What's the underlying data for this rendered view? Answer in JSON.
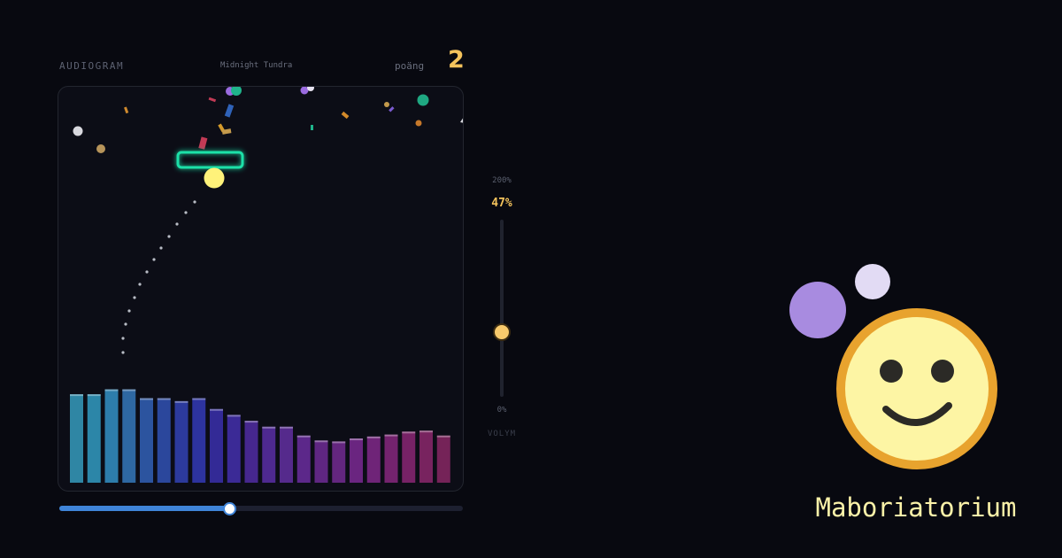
{
  "header": {
    "app_title": "AUDIOGRAM",
    "track_title": "Midnight Tundra",
    "score_label": "poäng",
    "score_value": "2"
  },
  "game": {
    "spectrum_levels": [
      0.45,
      0.45,
      0.475,
      0.475,
      0.43,
      0.43,
      0.415,
      0.43,
      0.375,
      0.345,
      0.315,
      0.285,
      0.285,
      0.24,
      0.215,
      0.21,
      0.225,
      0.235,
      0.245,
      0.26,
      0.265,
      0.24
    ],
    "spectrum_colors": [
      "#2f86a4",
      "#2c86a8",
      "#2d7dab",
      "#2e68a2",
      "#2c549f",
      "#2b479c",
      "#2c3a9c",
      "#2d339f",
      "#332a96",
      "#3b2a96",
      "#46278e",
      "#4e2990",
      "#552a8c",
      "#5c288a",
      "#5f2682",
      "#63267f",
      "#6a2580",
      "#6f2478",
      "#74236e",
      "#772266",
      "#78235f",
      "#752358"
    ],
    "paddle_color": "#1ee0a8",
    "ball_color": "#fff27a"
  },
  "seek": {
    "progress": 0.42
  },
  "volume": {
    "max_label": "200%",
    "value_label": "47%",
    "value": 0.47,
    "min_label": "0%",
    "label": "VOLYM"
  },
  "brand": {
    "name": "Maboriatorium",
    "colors": {
      "face_fill": "#fdf5a4",
      "face_ring": "#e8a32e",
      "bubble_large": "#a88be0",
      "bubble_small": "#e2dbf4"
    }
  }
}
